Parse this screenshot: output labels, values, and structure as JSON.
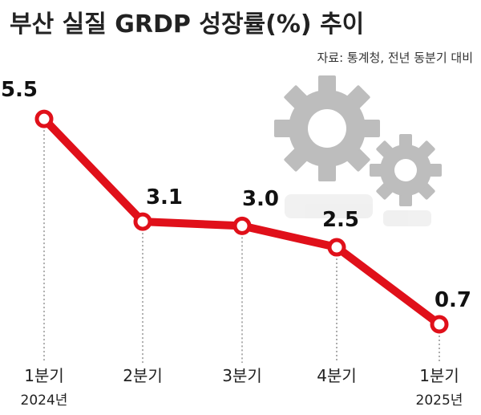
{
  "chart_data": {
    "type": "line",
    "title": "부산 실질 GRDP 성장률(%) 추이",
    "source": "자료: 통계청, 전년 동분기 대비",
    "categories": [
      "1분기",
      "2분기",
      "3분기",
      "4분기",
      "1분기"
    ],
    "year_labels": [
      "2024년",
      "",
      "",
      "",
      "2025년"
    ],
    "series": [
      {
        "values": [
          5.5,
          3.1,
          3.0,
          2.5,
          0.7
        ]
      }
    ],
    "value_labels": [
      "5.5",
      "3.1",
      "3.0",
      "2.5",
      "0.7"
    ],
    "xlabel": "",
    "ylabel": "",
    "grid": false,
    "legend": "none",
    "colors": {
      "line": "#e0101a",
      "marker_fill": "#ffffff",
      "guide": "#777777",
      "gear": "#bdbdbd"
    },
    "decoration": "gear-icons"
  }
}
